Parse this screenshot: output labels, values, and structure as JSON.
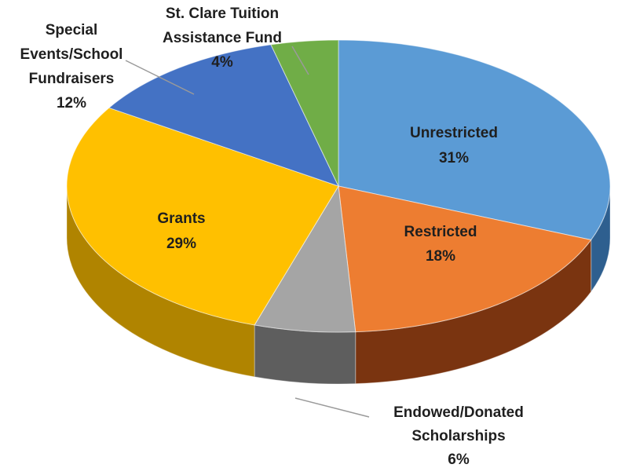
{
  "chart_data": {
    "type": "pie",
    "title": "",
    "style": "3d-pie",
    "slices": [
      {
        "name": "Unrestricted",
        "value": 31,
        "value_label": "31%",
        "color": "#5b9bd5",
        "side_color": "#2e5f8f"
      },
      {
        "name": "Restricted",
        "value": 18,
        "value_label": "18%",
        "color": "#ed7d31",
        "side_color": "#7a3410"
      },
      {
        "name": "Endowed/Donated Scholarships",
        "value": 6,
        "value_label": "6%",
        "color": "#a5a5a5",
        "side_color": "#5e5e5e"
      },
      {
        "name": "Grants",
        "value": 29,
        "value_label": "29%",
        "color": "#ffc000",
        "side_color": "#b08400"
      },
      {
        "name": "Special Events/School Fundraisers",
        "value": 12,
        "value_label": "12%",
        "color": "#4472c4",
        "side_color": "#24427a"
      },
      {
        "name": "St. Clare Tuition Assistance Fund",
        "value": 4,
        "value_label": "4%",
        "color": "#70ad47",
        "side_color": "#3f6b24"
      }
    ]
  }
}
